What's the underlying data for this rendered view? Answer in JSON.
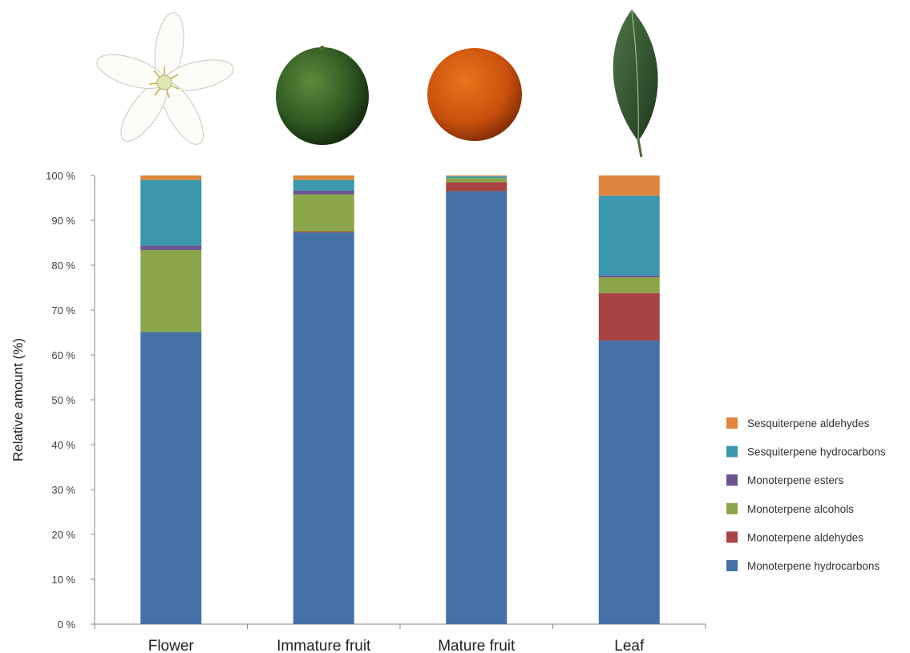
{
  "chart_data": {
    "type": "bar",
    "stacked": true,
    "categories": [
      "Flower",
      "Immature fruit",
      "Mature fruit",
      "Leaf"
    ],
    "category_images": [
      "flower-image",
      "green-immature-fruit-image",
      "orange-mature-fruit-image",
      "leaf-image"
    ],
    "ylabel": "Relative amount (%)",
    "xlabel": "",
    "ylim": [
      0,
      100
    ],
    "yticks": [
      0,
      10,
      20,
      30,
      40,
      50,
      60,
      70,
      80,
      90,
      100
    ],
    "ytick_labels": [
      "0 %",
      "10 %",
      "20 %",
      "30 %",
      "40 %",
      "50 %",
      "60 %",
      "70 %",
      "80 %",
      "90 %",
      "100  %"
    ],
    "grid": false,
    "legend_position": "right",
    "series": [
      {
        "name": "Monoterpene hydrocarbons",
        "color": "#4472a8",
        "values": [
          65.1,
          87.3,
          96.5,
          63.2
        ]
      },
      {
        "name": "Monoterpene aldehydes",
        "color": "#a94444",
        "values": [
          0.0,
          0.2,
          2.0,
          10.6
        ]
      },
      {
        "name": "Monoterpene alcohols",
        "color": "#8aa54a",
        "values": [
          18.3,
          8.3,
          0.9,
          3.5
        ]
      },
      {
        "name": "Monoterpene esters",
        "color": "#6b5491",
        "values": [
          1.0,
          0.8,
          0.0,
          0.4
        ]
      },
      {
        "name": "Sesquiterpene hydrocarbons",
        "color": "#3b97ad",
        "values": [
          14.6,
          2.4,
          0.4,
          17.8
        ]
      },
      {
        "name": "Sesquiterpene aldehydes",
        "color": "#e0853d",
        "values": [
          1.0,
          1.0,
          0.2,
          4.5
        ]
      }
    ]
  }
}
